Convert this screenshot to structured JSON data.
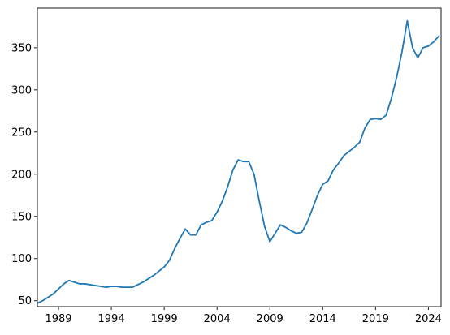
{
  "chart_data": {
    "type": "line",
    "title": "",
    "xlabel": "",
    "ylabel": "",
    "xlim": [
      1987.0,
      2025.2
    ],
    "ylim": [
      43,
      397
    ],
    "x_ticks": [
      {
        "value": 1989,
        "label": "1989"
      },
      {
        "value": 1994,
        "label": "1994"
      },
      {
        "value": 1999,
        "label": "1999"
      },
      {
        "value": 2004,
        "label": "2004"
      },
      {
        "value": 2009,
        "label": "2009"
      },
      {
        "value": 2014,
        "label": "2014"
      },
      {
        "value": 2019,
        "label": "2019"
      },
      {
        "value": 2024,
        "label": "2024"
      }
    ],
    "y_ticks": [
      {
        "value": 50,
        "label": "50"
      },
      {
        "value": 100,
        "label": "100"
      },
      {
        "value": 150,
        "label": "150"
      },
      {
        "value": 200,
        "label": "200"
      },
      {
        "value": 250,
        "label": "250"
      },
      {
        "value": 300,
        "label": "300"
      },
      {
        "value": 350,
        "label": "350"
      }
    ],
    "grid": false,
    "series": [
      {
        "color": "#1f77b4",
        "x": [
          1987.0,
          1987.5,
          1988.0,
          1988.5,
          1989.0,
          1989.5,
          1990.0,
          1990.5,
          1991.0,
          1991.5,
          1992.0,
          1992.5,
          1993.0,
          1993.5,
          1994.0,
          1994.5,
          1995.0,
          1995.5,
          1996.0,
          1996.5,
          1997.0,
          1997.5,
          1998.0,
          1998.5,
          1999.0,
          1999.5,
          2000.0,
          2000.5,
          2001.0,
          2001.5,
          2002.0,
          2002.5,
          2003.0,
          2003.5,
          2004.0,
          2004.5,
          2005.0,
          2005.5,
          2006.0,
          2006.5,
          2007.0,
          2007.5,
          2008.0,
          2008.5,
          2009.0,
          2009.5,
          2010.0,
          2010.5,
          2011.0,
          2011.5,
          2012.0,
          2012.5,
          2013.0,
          2013.5,
          2014.0,
          2014.5,
          2015.0,
          2015.5,
          2016.0,
          2016.5,
          2017.0,
          2017.5,
          2018.0,
          2018.5,
          2019.0,
          2019.5,
          2020.0,
          2020.5,
          2021.0,
          2021.5,
          2022.0,
          2022.5,
          2023.0,
          2023.5,
          2024.0,
          2024.5,
          2025.0
        ],
        "y": [
          47,
          50,
          54,
          58,
          64,
          70,
          74,
          72,
          70,
          70,
          69,
          68,
          67,
          66,
          67,
          67,
          66,
          66,
          66,
          69,
          72,
          76,
          80,
          85,
          90,
          98,
          112,
          124,
          135,
          128,
          128,
          140,
          143,
          145,
          155,
          168,
          185,
          205,
          217,
          215,
          215,
          200,
          168,
          138,
          120,
          130,
          140,
          137,
          133,
          130,
          131,
          142,
          158,
          175,
          188,
          192,
          205,
          213,
          222,
          227,
          232,
          238,
          255,
          265,
          266,
          265,
          270,
          290,
          315,
          345,
          382,
          350,
          338,
          350,
          352,
          357,
          364
        ]
      }
    ]
  }
}
